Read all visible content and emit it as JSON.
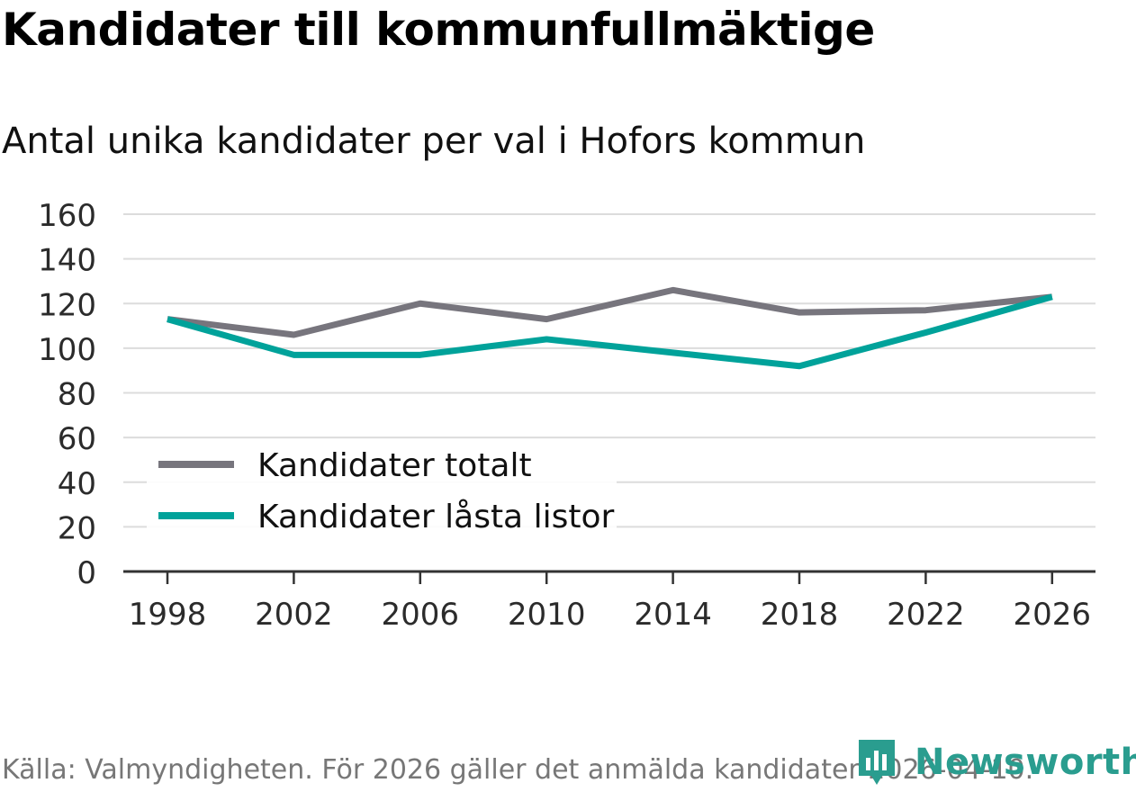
{
  "header": {
    "title": "Kandidater till kommunfullmäktige",
    "subtitle": "Antal unika kandidater per val i Hofors kommun"
  },
  "footer": {
    "source": "Källa: Valmyndigheten. För 2026 gäller det anmälda kandidater 2026-04-10.",
    "brand": "Newsworthy",
    "brand_icon": "bar-chart-logo-icon"
  },
  "chart_data": {
    "type": "line",
    "title": "Kandidater till kommunfullmäktige",
    "subtitle": "Antal unika kandidater per val i Hofors kommun",
    "xlabel": "",
    "ylabel": "",
    "categories": [
      "1998",
      "2002",
      "2006",
      "2010",
      "2014",
      "2018",
      "2022",
      "2026"
    ],
    "ylim": [
      0,
      160
    ],
    "yticks": [
      0,
      20,
      40,
      60,
      80,
      100,
      120,
      140,
      160
    ],
    "grid": true,
    "legend_position": "bottom-left",
    "series": [
      {
        "name": "Kandidater totalt",
        "color": "#77757d",
        "values": [
          113,
          106,
          120,
          113,
          126,
          116,
          117,
          123
        ]
      },
      {
        "name": "Kandidater låsta listor",
        "color": "#00a29a",
        "values": [
          113,
          97,
          97,
          104,
          98,
          92,
          107,
          123
        ]
      }
    ]
  }
}
